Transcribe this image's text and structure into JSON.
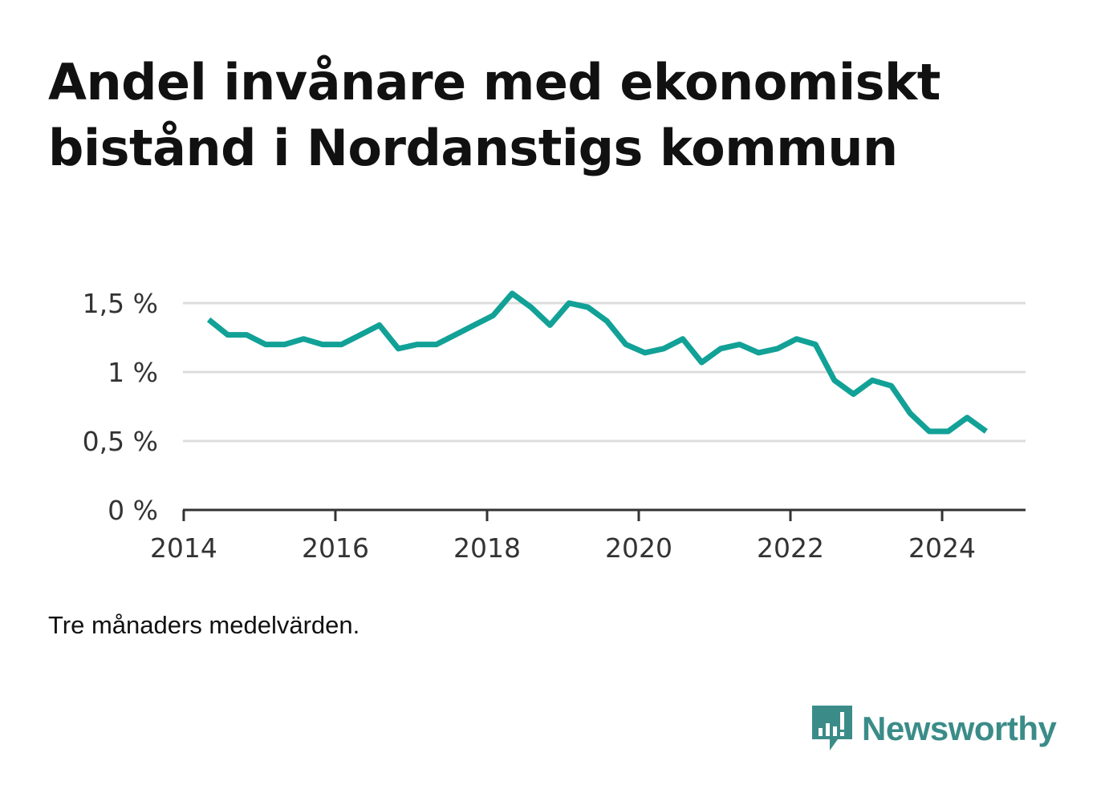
{
  "title_lines": [
    "Andel invånare med ekonomiskt",
    "bistånd i Nordanstigs kommun"
  ],
  "note": "Tre månaders medelvärden.",
  "brand": {
    "name": "Newsworthy",
    "color": "#3b8c88",
    "icon": "newsworthy-logo-icon"
  },
  "colors": {
    "line": "#12a197",
    "grid": "#dddddd",
    "axis": "#333333"
  },
  "chart_data": {
    "type": "line",
    "title": "Andel invånare med ekonomiskt bistånd i Nordanstigs kommun",
    "xlabel": "",
    "ylabel": "",
    "x_ticks": [
      2014,
      2016,
      2018,
      2020,
      2022,
      2024
    ],
    "xlim": [
      2013.99,
      2025.1
    ],
    "y_ticks": [
      {
        "value": 0,
        "label": "0 %"
      },
      {
        "value": 0.5,
        "label": "0,5 %"
      },
      {
        "value": 1,
        "label": "1 %"
      },
      {
        "value": 1.5,
        "label": "1,5 %"
      }
    ],
    "ylim": [
      0,
      1.5
    ],
    "grid": true,
    "series": [
      {
        "x": [
          2014.33,
          2014.58,
          2014.83,
          2015.08,
          2015.33,
          2015.58,
          2015.83,
          2016.08,
          2016.33,
          2016.58,
          2016.83,
          2017.08,
          2017.33,
          2017.58,
          2017.83,
          2018.08,
          2018.33,
          2018.58,
          2018.83,
          2019.08,
          2019.33,
          2019.58,
          2019.83,
          2020.08,
          2020.33,
          2020.58,
          2020.83,
          2021.08,
          2021.33,
          2021.58,
          2021.83,
          2022.08,
          2022.33,
          2022.58,
          2022.83,
          2023.08,
          2023.33,
          2023.58,
          2023.83,
          2024.08,
          2024.33,
          2024.58
        ],
        "values": [
          1.38,
          1.27,
          1.27,
          1.2,
          1.2,
          1.24,
          1.2,
          1.2,
          1.27,
          1.34,
          1.17,
          1.2,
          1.2,
          1.27,
          1.34,
          1.41,
          1.57,
          1.47,
          1.34,
          1.5,
          1.47,
          1.37,
          1.2,
          1.14,
          1.17,
          1.24,
          1.07,
          1.17,
          1.2,
          1.14,
          1.17,
          1.24,
          1.2,
          0.94,
          0.84,
          0.94,
          0.9,
          0.7,
          0.57,
          0.57,
          0.67,
          0.57
        ]
      }
    ]
  }
}
